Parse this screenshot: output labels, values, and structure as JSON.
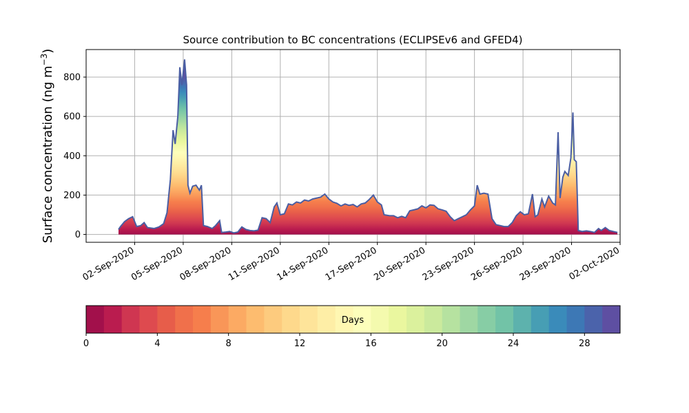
{
  "chart_data": {
    "type": "area",
    "title": "Source contribution to BC concentrations (ECLIPSEv6 and GFED4)",
    "ylabel": "Surface concentration (ng m",
    "ylabel_sup": "−3",
    "ylabel_close": ")",
    "xlabel": "",
    "x_range": [
      "2020-08-30",
      "2020-10-02"
    ],
    "ylim": [
      -40,
      940
    ],
    "y_ticks": [
      0,
      200,
      400,
      600,
      800
    ],
    "x_ticks": [
      {
        "date": "2020-09-02",
        "label": "02-Sep-2020"
      },
      {
        "date": "2020-09-05",
        "label": "05-Sep-2020"
      },
      {
        "date": "2020-09-08",
        "label": "08-Sep-2020"
      },
      {
        "date": "2020-09-11",
        "label": "11-Sep-2020"
      },
      {
        "date": "2020-09-14",
        "label": "14-Sep-2020"
      },
      {
        "date": "2020-09-17",
        "label": "17-Sep-2020"
      },
      {
        "date": "2020-09-20",
        "label": "20-Sep-2020"
      },
      {
        "date": "2020-09-23",
        "label": "23-Sep-2020"
      },
      {
        "date": "2020-09-26",
        "label": "26-Sep-2020"
      },
      {
        "date": "2020-09-29",
        "label": "29-Sep-2020"
      },
      {
        "date": "2020-10-02",
        "label": "02-Oct-2020"
      }
    ],
    "grid": true,
    "total": [
      [
        "2020-09-01 00:00",
        25
      ],
      [
        "2020-09-01 03:00",
        40
      ],
      [
        "2020-09-01 09:00",
        65
      ],
      [
        "2020-09-01 15:00",
        80
      ],
      [
        "2020-09-01 21:00",
        90
      ],
      [
        "2020-09-02 03:00",
        40
      ],
      [
        "2020-09-02 09:00",
        45
      ],
      [
        "2020-09-02 14:00",
        60
      ],
      [
        "2020-09-02 19:00",
        35
      ],
      [
        "2020-09-03 05:00",
        30
      ],
      [
        "2020-09-03 12:00",
        38
      ],
      [
        "2020-09-03 19:00",
        55
      ],
      [
        "2020-09-04 00:00",
        110
      ],
      [
        "2020-09-04 05:00",
        280
      ],
      [
        "2020-09-04 09:00",
        530
      ],
      [
        "2020-09-04 12:00",
        460
      ],
      [
        "2020-09-04 16:00",
        600
      ],
      [
        "2020-09-04 19:00",
        850
      ],
      [
        "2020-09-04 22:00",
        760
      ],
      [
        "2020-09-05 02:00",
        890
      ],
      [
        "2020-09-05 05:00",
        760
      ],
      [
        "2020-09-05 07:00",
        250
      ],
      [
        "2020-09-05 10:00",
        210
      ],
      [
        "2020-09-05 14:00",
        245
      ],
      [
        "2020-09-05 19:00",
        250
      ],
      [
        "2020-09-06 00:00",
        225
      ],
      [
        "2020-09-06 03:00",
        250
      ],
      [
        "2020-09-06 06:00",
        45
      ],
      [
        "2020-09-06 12:00",
        40
      ],
      [
        "2020-09-06 19:00",
        30
      ],
      [
        "2020-09-07 00:00",
        45
      ],
      [
        "2020-09-07 06:00",
        70
      ],
      [
        "2020-09-07 09:00",
        10
      ],
      [
        "2020-09-07 15:00",
        12
      ],
      [
        "2020-09-07 21:00",
        15
      ],
      [
        "2020-09-08 03:00",
        8
      ],
      [
        "2020-09-08 09:00",
        12
      ],
      [
        "2020-09-08 15:00",
        38
      ],
      [
        "2020-09-08 21:00",
        25
      ],
      [
        "2020-09-09 03:00",
        20
      ],
      [
        "2020-09-09 09:00",
        18
      ],
      [
        "2020-09-09 15:00",
        22
      ],
      [
        "2020-09-09 21:00",
        85
      ],
      [
        "2020-09-10 03:00",
        80
      ],
      [
        "2020-09-10 09:00",
        60
      ],
      [
        "2020-09-10 15:00",
        140
      ],
      [
        "2020-09-10 19:00",
        160
      ],
      [
        "2020-09-11 00:00",
        100
      ],
      [
        "2020-09-11 06:00",
        105
      ],
      [
        "2020-09-11 12:00",
        155
      ],
      [
        "2020-09-11 18:00",
        150
      ],
      [
        "2020-09-12 00:00",
        165
      ],
      [
        "2020-09-12 06:00",
        160
      ],
      [
        "2020-09-12 12:00",
        175
      ],
      [
        "2020-09-12 18:00",
        170
      ],
      [
        "2020-09-13 00:00",
        180
      ],
      [
        "2020-09-13 06:00",
        185
      ],
      [
        "2020-09-13 12:00",
        190
      ],
      [
        "2020-09-13 18:00",
        205
      ],
      [
        "2020-09-14 00:00",
        180
      ],
      [
        "2020-09-14 06:00",
        165
      ],
      [
        "2020-09-14 12:00",
        158
      ],
      [
        "2020-09-14 18:00",
        145
      ],
      [
        "2020-09-15 00:00",
        155
      ],
      [
        "2020-09-15 06:00",
        148
      ],
      [
        "2020-09-15 12:00",
        152
      ],
      [
        "2020-09-15 18:00",
        140
      ],
      [
        "2020-09-16 00:00",
        155
      ],
      [
        "2020-09-16 06:00",
        160
      ],
      [
        "2020-09-16 12:00",
        178
      ],
      [
        "2020-09-16 18:00",
        200
      ],
      [
        "2020-09-17 00:00",
        165
      ],
      [
        "2020-09-17 06:00",
        150
      ],
      [
        "2020-09-17 10:00",
        100
      ],
      [
        "2020-09-17 18:00",
        95
      ],
      [
        "2020-09-18 00:00",
        95
      ],
      [
        "2020-09-18 06:00",
        85
      ],
      [
        "2020-09-18 12:00",
        92
      ],
      [
        "2020-09-18 18:00",
        85
      ],
      [
        "2020-09-19 00:00",
        120
      ],
      [
        "2020-09-19 06:00",
        125
      ],
      [
        "2020-09-19 12:00",
        130
      ],
      [
        "2020-09-19 18:00",
        145
      ],
      [
        "2020-09-20 00:00",
        135
      ],
      [
        "2020-09-20 06:00",
        150
      ],
      [
        "2020-09-20 12:00",
        148
      ],
      [
        "2020-09-20 18:00",
        130
      ],
      [
        "2020-09-21 00:00",
        125
      ],
      [
        "2020-09-21 06:00",
        118
      ],
      [
        "2020-09-21 12:00",
        90
      ],
      [
        "2020-09-21 18:00",
        70
      ],
      [
        "2020-09-22 00:00",
        80
      ],
      [
        "2020-09-22 06:00",
        90
      ],
      [
        "2020-09-22 12:00",
        100
      ],
      [
        "2020-09-22 18:00",
        125
      ],
      [
        "2020-09-23 00:00",
        145
      ],
      [
        "2020-09-23 04:00",
        250
      ],
      [
        "2020-09-23 08:00",
        205
      ],
      [
        "2020-09-23 14:00",
        210
      ],
      [
        "2020-09-23 20:00",
        205
      ],
      [
        "2020-09-24 02:00",
        80
      ],
      [
        "2020-09-24 08:00",
        50
      ],
      [
        "2020-09-24 14:00",
        45
      ],
      [
        "2020-09-24 20:00",
        40
      ],
      [
        "2020-09-25 02:00",
        40
      ],
      [
        "2020-09-25 08:00",
        60
      ],
      [
        "2020-09-25 14:00",
        95
      ],
      [
        "2020-09-25 20:00",
        115
      ],
      [
        "2020-09-26 02:00",
        100
      ],
      [
        "2020-09-26 08:00",
        105
      ],
      [
        "2020-09-26 14:00",
        205
      ],
      [
        "2020-09-26 18:00",
        90
      ],
      [
        "2020-09-26 22:00",
        100
      ],
      [
        "2020-09-27 04:00",
        180
      ],
      [
        "2020-09-27 08:00",
        140
      ],
      [
        "2020-09-27 14:00",
        195
      ],
      [
        "2020-09-27 20:00",
        160
      ],
      [
        "2020-09-28 00:00",
        150
      ],
      [
        "2020-09-28 04:00",
        520
      ],
      [
        "2020-09-28 07:00",
        185
      ],
      [
        "2020-09-28 11:00",
        290
      ],
      [
        "2020-09-28 14:00",
        320
      ],
      [
        "2020-09-28 19:00",
        300
      ],
      [
        "2020-09-28 23:00",
        390
      ],
      [
        "2020-09-29 02:00",
        620
      ],
      [
        "2020-09-29 04:00",
        380
      ],
      [
        "2020-09-29 07:00",
        370
      ],
      [
        "2020-09-29 10:00",
        20
      ],
      [
        "2020-09-29 16:00",
        15
      ],
      [
        "2020-09-29 22:00",
        18
      ],
      [
        "2020-09-30 04:00",
        15
      ],
      [
        "2020-09-30 10:00",
        10
      ],
      [
        "2020-09-30 16:00",
        30
      ],
      [
        "2020-09-30 20:00",
        20
      ],
      [
        "2020-10-01 02:00",
        35
      ],
      [
        "2020-10-01 08:00",
        20
      ],
      [
        "2020-10-01 14:00",
        15
      ],
      [
        "2020-10-01 20:00",
        10
      ]
    ],
    "colorbar": {
      "label": "Days",
      "range": [
        0,
        30
      ],
      "ticks": [
        0,
        4,
        8,
        12,
        16,
        20,
        24,
        28
      ],
      "colors": [
        "#a2104b",
        "#ba1c4f",
        "#cf3651",
        "#de4a4f",
        "#e75d4a",
        "#f0704b",
        "#f67e4c",
        "#f99658",
        "#fcaa63",
        "#fdbc6f",
        "#fdcb7e",
        "#fed98c",
        "#fee49a",
        "#feeea6",
        "#fff7b2",
        "#fdfebb",
        "#f4faae",
        "#eaf79f",
        "#dbf19d",
        "#cbea9d",
        "#b6e2a0",
        "#9fd7a3",
        "#87cda5",
        "#72c3a7",
        "#5db2ad",
        "#479eb4",
        "#3a8bba",
        "#3d78b5",
        "#4b63ab",
        "#5e4fa2"
      ]
    },
    "series_color": "#4a5ea3"
  }
}
